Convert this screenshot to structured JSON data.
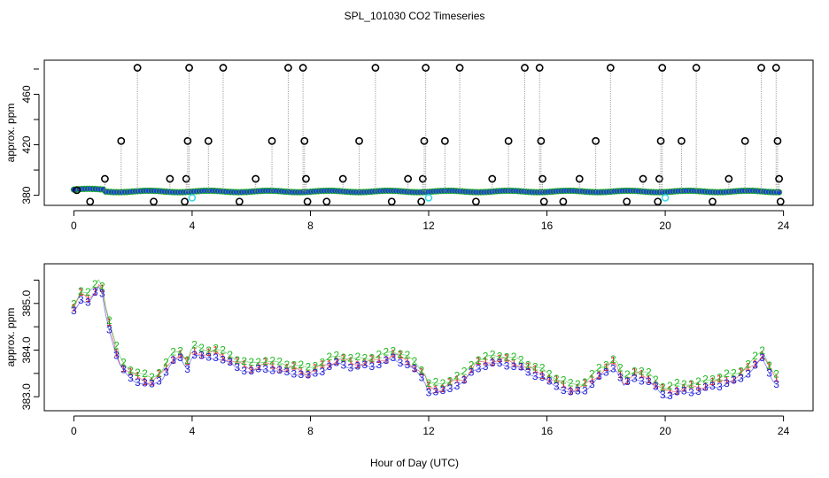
{
  "chart_data": [
    {
      "type": "scatter",
      "title": "SPL_101030  CO2 Timeseries",
      "xlabel": "",
      "ylabel": "approx. ppm",
      "xlim": [
        -1,
        25
      ],
      "ylim": [
        372,
        487
      ],
      "xticks": [
        0,
        4,
        8,
        12,
        16,
        20,
        24
      ],
      "xtick_labels": [
        "0",
        "4",
        "8",
        "12",
        "16",
        "20",
        "24"
      ],
      "yticks": [
        380,
        420,
        460
      ],
      "ytick_labels": [
        "380",
        "420",
        "460"
      ],
      "baseline_ppm": 383,
      "spikes": [
        {
          "x": 0.1,
          "value": 384
        },
        {
          "x": 0.55,
          "value": 375
        },
        {
          "x": 1.05,
          "value": 393
        },
        {
          "x": 1.6,
          "value": 423
        },
        {
          "x": 2.15,
          "value": 481
        },
        {
          "x": 2.7,
          "value": 375
        },
        {
          "x": 3.25,
          "value": 393
        },
        {
          "x": 3.75,
          "value": 375
        },
        {
          "x": 3.8,
          "value": 393
        },
        {
          "x": 3.85,
          "value": 423
        },
        {
          "x": 3.9,
          "value": 481
        },
        {
          "x": 4.55,
          "value": 423
        },
        {
          "x": 5.05,
          "value": 481
        },
        {
          "x": 5.6,
          "value": 375
        },
        {
          "x": 6.15,
          "value": 393
        },
        {
          "x": 6.7,
          "value": 423
        },
        {
          "x": 7.25,
          "value": 481
        },
        {
          "x": 7.75,
          "value": 481
        },
        {
          "x": 7.8,
          "value": 423
        },
        {
          "x": 7.85,
          "value": 393
        },
        {
          "x": 7.9,
          "value": 375
        },
        {
          "x": 8.55,
          "value": 375
        },
        {
          "x": 9.1,
          "value": 393
        },
        {
          "x": 9.65,
          "value": 423
        },
        {
          "x": 10.2,
          "value": 481
        },
        {
          "x": 10.75,
          "value": 375
        },
        {
          "x": 11.3,
          "value": 393
        },
        {
          "x": 11.75,
          "value": 375
        },
        {
          "x": 11.8,
          "value": 393
        },
        {
          "x": 11.85,
          "value": 423
        },
        {
          "x": 11.9,
          "value": 481
        },
        {
          "x": 12.55,
          "value": 423
        },
        {
          "x": 13.05,
          "value": 481
        },
        {
          "x": 13.6,
          "value": 375
        },
        {
          "x": 14.15,
          "value": 393
        },
        {
          "x": 14.7,
          "value": 423
        },
        {
          "x": 15.25,
          "value": 481
        },
        {
          "x": 15.75,
          "value": 481
        },
        {
          "x": 15.8,
          "value": 423
        },
        {
          "x": 15.85,
          "value": 393
        },
        {
          "x": 15.9,
          "value": 375
        },
        {
          "x": 16.55,
          "value": 375
        },
        {
          "x": 17.1,
          "value": 393
        },
        {
          "x": 17.65,
          "value": 423
        },
        {
          "x": 18.15,
          "value": 481
        },
        {
          "x": 18.7,
          "value": 375
        },
        {
          "x": 19.25,
          "value": 393
        },
        {
          "x": 19.75,
          "value": 375
        },
        {
          "x": 19.8,
          "value": 393
        },
        {
          "x": 19.85,
          "value": 423
        },
        {
          "x": 19.9,
          "value": 481
        },
        {
          "x": 20.55,
          "value": 423
        },
        {
          "x": 21.05,
          "value": 481
        },
        {
          "x": 21.6,
          "value": 375
        },
        {
          "x": 22.15,
          "value": 393
        },
        {
          "x": 22.7,
          "value": 423
        },
        {
          "x": 23.25,
          "value": 481
        },
        {
          "x": 23.75,
          "value": 481
        },
        {
          "x": 23.8,
          "value": 423
        },
        {
          "x": 23.85,
          "value": 393
        },
        {
          "x": 23.9,
          "value": 375
        }
      ],
      "cyan_markers": [
        {
          "x": 4.0,
          "value": 378
        },
        {
          "x": 12.0,
          "value": 378
        },
        {
          "x": 20.0,
          "value": 378
        }
      ],
      "symbol_note": "black open circles = spikes; blue/green dots near baseline; cyan = sensor check"
    },
    {
      "type": "line",
      "title": "",
      "xlabel": "Hour of Day (UTC)",
      "ylabel": "approx. ppm",
      "xlim": [
        -1,
        25
      ],
      "ylim": [
        382.7,
        385.85
      ],
      "xticks": [
        0,
        4,
        8,
        12,
        16,
        20,
        24
      ],
      "xtick_labels": [
        "0",
        "4",
        "8",
        "12",
        "16",
        "20",
        "24"
      ],
      "yticks": [
        383.0,
        384.0,
        385.0
      ],
      "ytick_labels": [
        "383.0",
        "384.0",
        "385.0"
      ],
      "series": [
        {
          "name": "1",
          "color": "#d62728",
          "offset": 0.0
        },
        {
          "name": "2",
          "color": "#22b822",
          "offset": 0.09
        },
        {
          "name": "3",
          "color": "#1f1fd6",
          "offset": -0.09
        }
      ],
      "x": [
        0.0,
        0.25,
        0.5,
        0.75,
        0.9,
        1.1,
        1.3,
        1.5,
        1.7,
        1.9,
        2.2,
        2.6,
        3.0,
        3.3,
        3.6,
        3.85,
        4.0,
        4.4,
        4.8,
        5.2,
        5.6,
        6.0,
        6.5,
        7.0,
        7.5,
        7.9,
        8.2,
        8.6,
        9.0,
        9.5,
        10.0,
        10.5,
        10.8,
        11.2,
        11.6,
        11.9,
        12.0,
        12.4,
        12.8,
        13.2,
        13.6,
        14.0,
        14.5,
        15.0,
        15.4,
        15.8,
        16.0,
        16.4,
        16.8,
        17.2,
        17.6,
        18.0,
        18.3,
        18.6,
        19.0,
        19.4,
        19.8,
        20.0,
        20.4,
        20.8,
        21.2,
        21.6,
        22.0,
        22.4,
        22.8,
        23.0,
        23.3,
        23.6,
        23.85
      ],
      "values": [
        384.9,
        385.2,
        385.1,
        385.3,
        385.5,
        384.8,
        384.3,
        383.8,
        383.6,
        383.5,
        383.4,
        383.3,
        383.5,
        383.8,
        383.9,
        383.7,
        384.0,
        383.9,
        383.95,
        383.8,
        383.7,
        383.6,
        383.7,
        383.6,
        383.6,
        383.5,
        383.6,
        383.7,
        383.8,
        383.7,
        383.75,
        383.8,
        383.9,
        383.8,
        383.6,
        383.4,
        383.2,
        383.15,
        383.3,
        383.4,
        383.7,
        383.75,
        383.8,
        383.7,
        383.6,
        383.5,
        383.4,
        383.3,
        383.15,
        383.2,
        383.4,
        383.6,
        383.75,
        383.3,
        383.5,
        383.4,
        383.2,
        383.1,
        383.15,
        383.2,
        383.2,
        383.3,
        383.35,
        383.4,
        383.6,
        383.7,
        383.9,
        383.5,
        383.3
      ]
    }
  ]
}
